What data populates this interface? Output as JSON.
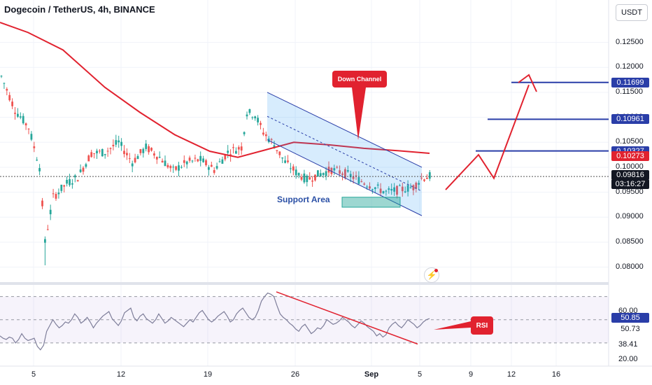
{
  "header": {
    "title": "Dogecoin / TetherUS, 4h, BINANCE",
    "currency": "USDT"
  },
  "chart_data": {
    "type": "candlestick",
    "price_axis": {
      "ticks": [
        "0.12500",
        "0.12000",
        "0.11500",
        "0.11000",
        "0.10500",
        "0.10000",
        "0.09500",
        "0.09000",
        "0.08500",
        "0.08000"
      ],
      "ylim": [
        0.077,
        0.1335
      ]
    },
    "price_tags": [
      {
        "label": "0.11699",
        "value": 0.11699,
        "color": "#2a3ea8"
      },
      {
        "label": "0.10961",
        "value": 0.10961,
        "color": "#2a3ea8"
      },
      {
        "label": "0.10327",
        "value": 0.10327,
        "color": "#2a3ea8"
      },
      {
        "label": "0.10273",
        "value": 0.10273,
        "color": "#e1222f"
      },
      {
        "label": "0.09816",
        "value": 0.09816,
        "color": "#131722"
      },
      {
        "label": "03:16:27",
        "value": 0.096,
        "color": "#131722"
      }
    ],
    "x_ticks": [
      "5",
      "12",
      "19",
      "26",
      "Sep",
      "5",
      "9",
      "12",
      "16"
    ],
    "rsi": {
      "label": "RSI",
      "levels": [
        "60.00",
        "38.41",
        "20.00"
      ],
      "tags": [
        {
          "label": "50.85",
          "color": "#2a3ea8"
        },
        {
          "label": "50.73",
          "color": "#ffffff"
        }
      ],
      "values": [
        36,
        34,
        33,
        35,
        34,
        30,
        33,
        38,
        34,
        32,
        33,
        34,
        27,
        24,
        28,
        40,
        45,
        50,
        46,
        43,
        45,
        48,
        47,
        50,
        55,
        52,
        47,
        49,
        52,
        48,
        43,
        47,
        50,
        53,
        55,
        57,
        51,
        48,
        45,
        49,
        56,
        58,
        60,
        52,
        49,
        53,
        55,
        51,
        49,
        47,
        50,
        55,
        51,
        47,
        49,
        52,
        50,
        48,
        46,
        44,
        47,
        50,
        48,
        52,
        56,
        58,
        54,
        50,
        48,
        50,
        53,
        55,
        57,
        53,
        48,
        50,
        55,
        58,
        60,
        56,
        52,
        50,
        52,
        58,
        66,
        70,
        73,
        72,
        70,
        62,
        55,
        52,
        50,
        47,
        45,
        42,
        40,
        44,
        46,
        42,
        38,
        40,
        43,
        42,
        45,
        50,
        48,
        46,
        47,
        49,
        52,
        50,
        48,
        45,
        43,
        46,
        49,
        47,
        44,
        42,
        40,
        36,
        38,
        35,
        37,
        43,
        46,
        48,
        45,
        43,
        46,
        50,
        48,
        46,
        43,
        45,
        48,
        50,
        51
      ]
    },
    "annotations": {
      "down_channel": "Down Channel",
      "support_area": "Support Area",
      "rsi_callout": "RSI"
    }
  },
  "colors": {
    "up": "#26a69a",
    "down": "#ef5350",
    "ma": "#e1222f",
    "channel": "#2a3ea8"
  }
}
